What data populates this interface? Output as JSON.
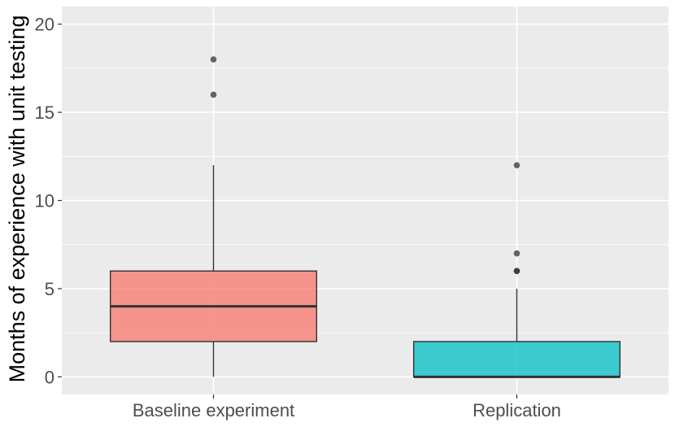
{
  "chart_data": {
    "type": "boxplot",
    "title": "",
    "xlabel": "",
    "ylabel": "Months of experience with unit testing",
    "ylim": [
      -1,
      21
    ],
    "yticks": [
      0,
      5,
      10,
      15,
      20
    ],
    "ytick_labels": [
      "0",
      "5",
      "10",
      "15",
      "20"
    ],
    "grid": true,
    "categories": [
      "Baseline experiment",
      "Replication"
    ],
    "boxes": [
      {
        "name": "Baseline experiment",
        "color": "#F8766D",
        "whisker_low": 0,
        "q1": 2,
        "median": 4,
        "q3": 6,
        "whisker_high": 12,
        "outliers": [
          16,
          18
        ]
      },
      {
        "name": "Replication",
        "color": "#00BFC4",
        "whisker_low": 0,
        "q1": 0,
        "median": 0,
        "q3": 2,
        "whisker_high": 5,
        "outliers": [
          6,
          6,
          7,
          12
        ]
      }
    ]
  },
  "colors": {
    "panel_background": "#EBEBEB",
    "grid": "#FFFFFF",
    "box_outline": "#333333",
    "outlier": "#333333"
  }
}
